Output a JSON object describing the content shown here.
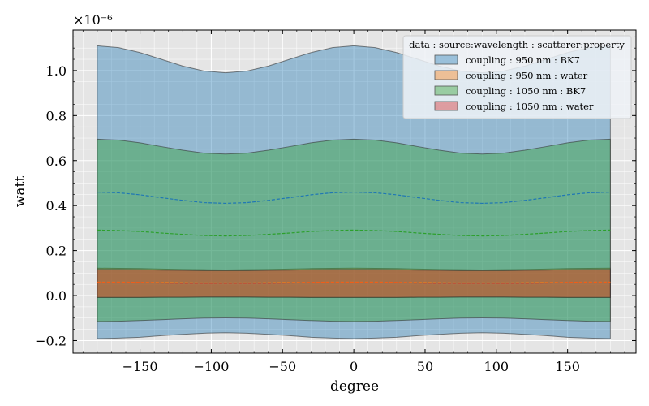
{
  "chart_data": {
    "type": "area",
    "title": "",
    "xlabel": "degree",
    "ylabel": "watt",
    "y_offset_label": "×10⁻⁶",
    "xlim": [
      -197,
      198
    ],
    "ylim": [
      -0.256,
      1.18
    ],
    "xticks": [
      -150,
      -100,
      -50,
      0,
      50,
      100,
      150
    ],
    "xtick_labels": [
      "−150",
      "−100",
      "−50",
      "0",
      "50",
      "100",
      "150"
    ],
    "yticks": [
      -0.2,
      0.0,
      0.2,
      0.4,
      0.6,
      0.8,
      1.0
    ],
    "ytick_labels": [
      "−0.2",
      "0.0",
      "0.2",
      "0.4",
      "0.6",
      "0.8",
      "1.0"
    ],
    "grid": true,
    "legend_title": "data : source:wavelength : scatterer:property",
    "legend_placement": "top-right",
    "x": [
      -180,
      -165,
      -150,
      -135,
      -120,
      -105,
      -90,
      -75,
      -60,
      -45,
      -30,
      -15,
      0,
      15,
      30,
      45,
      60,
      75,
      90,
      105,
      120,
      135,
      150,
      165,
      180
    ],
    "series": [
      {
        "name": "coupling : 950 nm : BK7",
        "color": "#1f77b4",
        "mean": [
          0.46,
          0.457,
          0.448,
          0.435,
          0.423,
          0.413,
          0.41,
          0.413,
          0.423,
          0.435,
          0.448,
          0.457,
          0.46,
          0.457,
          0.448,
          0.435,
          0.423,
          0.413,
          0.41,
          0.413,
          0.423,
          0.435,
          0.448,
          0.457,
          0.46
        ],
        "upper": [
          1.11,
          1.102,
          1.08,
          1.05,
          1.02,
          0.998,
          0.99,
          0.998,
          1.02,
          1.05,
          1.08,
          1.102,
          1.11,
          1.102,
          1.08,
          1.05,
          1.02,
          0.998,
          0.99,
          0.998,
          1.02,
          1.05,
          1.08,
          1.102,
          1.11
        ],
        "lower": [
          -0.191,
          -0.189,
          -0.185,
          -0.178,
          -0.172,
          -0.167,
          -0.165,
          -0.167,
          -0.172,
          -0.178,
          -0.185,
          -0.189,
          -0.191,
          -0.189,
          -0.185,
          -0.178,
          -0.172,
          -0.167,
          -0.165,
          -0.167,
          -0.172,
          -0.178,
          -0.185,
          -0.189,
          -0.191
        ]
      },
      {
        "name": "coupling : 950 nm : water",
        "color": "#ff7f0e",
        "mean": [
          0.06,
          0.06,
          0.059,
          0.058,
          0.057,
          0.056,
          0.056,
          0.056,
          0.057,
          0.058,
          0.059,
          0.06,
          0.06,
          0.06,
          0.059,
          0.058,
          0.057,
          0.056,
          0.056,
          0.056,
          0.057,
          0.058,
          0.059,
          0.06,
          0.06
        ],
        "upper": [
          0.122,
          0.121,
          0.12,
          0.118,
          0.116,
          0.115,
          0.114,
          0.115,
          0.116,
          0.118,
          0.12,
          0.121,
          0.122,
          0.121,
          0.12,
          0.118,
          0.116,
          0.115,
          0.114,
          0.115,
          0.116,
          0.118,
          0.12,
          0.121,
          0.122
        ],
        "lower": [
          -0.009,
          -0.009,
          -0.009,
          -0.008,
          -0.008,
          -0.007,
          -0.007,
          -0.007,
          -0.008,
          -0.008,
          -0.009,
          -0.009,
          -0.009,
          -0.009,
          -0.009,
          -0.008,
          -0.008,
          -0.007,
          -0.007,
          -0.007,
          -0.008,
          -0.008,
          -0.009,
          -0.009,
          -0.009
        ]
      },
      {
        "name": "coupling : 1050 nm : BK7",
        "color": "#2ca02c",
        "mean": [
          0.291,
          0.289,
          0.285,
          0.278,
          0.272,
          0.267,
          0.265,
          0.267,
          0.272,
          0.278,
          0.285,
          0.289,
          0.291,
          0.289,
          0.285,
          0.278,
          0.272,
          0.267,
          0.265,
          0.267,
          0.272,
          0.278,
          0.285,
          0.289,
          0.291
        ],
        "upper": [
          0.695,
          0.691,
          0.679,
          0.662,
          0.646,
          0.633,
          0.629,
          0.633,
          0.646,
          0.662,
          0.679,
          0.691,
          0.695,
          0.691,
          0.679,
          0.662,
          0.646,
          0.633,
          0.629,
          0.633,
          0.646,
          0.662,
          0.679,
          0.691,
          0.695
        ],
        "lower": [
          -0.115,
          -0.114,
          -0.111,
          -0.107,
          -0.103,
          -0.1,
          -0.099,
          -0.1,
          -0.103,
          -0.107,
          -0.111,
          -0.114,
          -0.115,
          -0.114,
          -0.111,
          -0.107,
          -0.103,
          -0.1,
          -0.099,
          -0.1,
          -0.103,
          -0.107,
          -0.111,
          -0.114,
          -0.115
        ]
      },
      {
        "name": "coupling : 1050 nm : water",
        "color": "#d62728",
        "mean": [
          0.057,
          0.057,
          0.057,
          0.056,
          0.055,
          0.055,
          0.055,
          0.055,
          0.055,
          0.056,
          0.057,
          0.057,
          0.057,
          0.057,
          0.057,
          0.056,
          0.055,
          0.055,
          0.055,
          0.055,
          0.055,
          0.056,
          0.057,
          0.057,
          0.057
        ],
        "upper": [
          0.116,
          0.116,
          0.115,
          0.113,
          0.112,
          0.11,
          0.11,
          0.11,
          0.112,
          0.113,
          0.115,
          0.116,
          0.116,
          0.116,
          0.115,
          0.113,
          0.112,
          0.11,
          0.11,
          0.11,
          0.112,
          0.113,
          0.115,
          0.116,
          0.116
        ],
        "lower": [
          -0.008,
          -0.008,
          -0.008,
          -0.007,
          -0.007,
          -0.006,
          -0.006,
          -0.006,
          -0.007,
          -0.007,
          -0.008,
          -0.008,
          -0.008,
          -0.008,
          -0.008,
          -0.007,
          -0.007,
          -0.006,
          -0.006,
          -0.006,
          -0.007,
          -0.007,
          -0.008,
          -0.008,
          -0.008
        ]
      }
    ]
  }
}
